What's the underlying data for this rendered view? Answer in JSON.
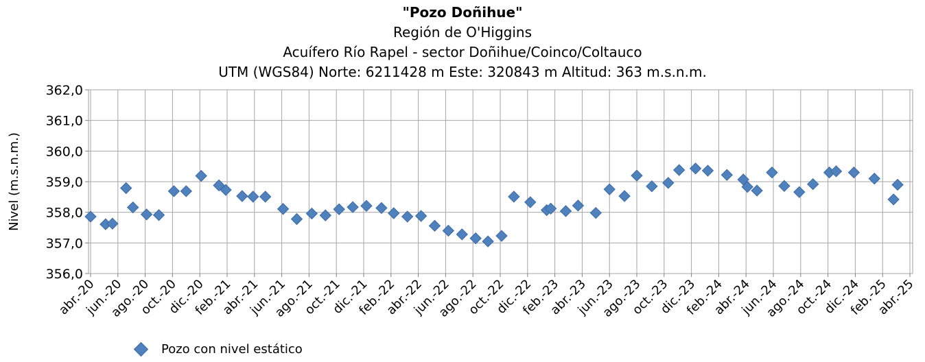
{
  "chart_data": {
    "type": "scatter",
    "title": "\"Pozo Doñihue\"",
    "subtitle_lines": [
      "Región de O'Higgins",
      "Acuífero Río Rapel - sector Doñihue/Coinco/Coltauco",
      "UTM (WGS84) Norte: 6211428 m  Este: 320843 m   Altitud: 363 m.s.n.m."
    ],
    "ylabel": "Nivel (m.s.n.m.)",
    "xlabel": "",
    "ylim": [
      356.0,
      362.0
    ],
    "yticks": [
      "356,0",
      "357,0",
      "358,0",
      "359,0",
      "360,0",
      "361,0",
      "362,0"
    ],
    "xticks": [
      "abr.-20",
      "jun.-20",
      "ago.-20",
      "oct.-20",
      "dic.-20",
      "feb.-21",
      "abr.-21",
      "jun.-21",
      "ago.-21",
      "oct.-21",
      "dic.-21",
      "feb.-22",
      "abr.-22",
      "jun.-22",
      "ago.-22",
      "oct.-22",
      "dic.-22",
      "feb.-23",
      "abr.-23",
      "jun.-23",
      "ago.-23",
      "oct.-23",
      "dic.-23",
      "feb.-24",
      "abr.-24",
      "jun.-24",
      "ago.-24",
      "oct.-24",
      "dic.-24",
      "feb.-25",
      "abr.-25"
    ],
    "x_unit": "months since abr.-20",
    "grid": true,
    "legend_position": "bottom-left",
    "series": [
      {
        "name": "Pozo con nivel estático",
        "color": "#4f81bd",
        "marker": "diamond",
        "points": [
          {
            "x": 0.0,
            "y": 357.86
          },
          {
            "x": 1.1,
            "y": 357.61
          },
          {
            "x": 1.6,
            "y": 357.63
          },
          {
            "x": 2.6,
            "y": 358.79
          },
          {
            "x": 3.1,
            "y": 358.16
          },
          {
            "x": 4.1,
            "y": 357.93
          },
          {
            "x": 5.0,
            "y": 357.91
          },
          {
            "x": 6.1,
            "y": 358.69
          },
          {
            "x": 7.0,
            "y": 358.69
          },
          {
            "x": 8.1,
            "y": 359.19
          },
          {
            "x": 9.4,
            "y": 358.88
          },
          {
            "x": 9.9,
            "y": 358.73
          },
          {
            "x": 11.1,
            "y": 358.53
          },
          {
            "x": 11.9,
            "y": 358.51
          },
          {
            "x": 12.8,
            "y": 358.51
          },
          {
            "x": 14.1,
            "y": 358.11
          },
          {
            "x": 15.1,
            "y": 357.78
          },
          {
            "x": 16.2,
            "y": 357.96
          },
          {
            "x": 17.2,
            "y": 357.9
          },
          {
            "x": 18.2,
            "y": 358.1
          },
          {
            "x": 19.2,
            "y": 358.17
          },
          {
            "x": 20.2,
            "y": 358.21
          },
          {
            "x": 21.3,
            "y": 358.14
          },
          {
            "x": 22.2,
            "y": 357.97
          },
          {
            "x": 23.2,
            "y": 357.86
          },
          {
            "x": 24.2,
            "y": 357.88
          },
          {
            "x": 25.2,
            "y": 357.56
          },
          {
            "x": 26.2,
            "y": 357.4
          },
          {
            "x": 27.2,
            "y": 357.28
          },
          {
            "x": 28.2,
            "y": 357.15
          },
          {
            "x": 29.1,
            "y": 357.05
          },
          {
            "x": 30.1,
            "y": 357.23
          },
          {
            "x": 31.0,
            "y": 358.51
          },
          {
            "x": 32.2,
            "y": 358.33
          },
          {
            "x": 33.4,
            "y": 358.07
          },
          {
            "x": 33.7,
            "y": 358.12
          },
          {
            "x": 34.8,
            "y": 358.04
          },
          {
            "x": 35.7,
            "y": 358.22
          },
          {
            "x": 37.0,
            "y": 357.98
          },
          {
            "x": 38.0,
            "y": 358.75
          },
          {
            "x": 39.1,
            "y": 358.53
          },
          {
            "x": 40.0,
            "y": 359.2
          },
          {
            "x": 41.1,
            "y": 358.85
          },
          {
            "x": 42.3,
            "y": 358.96
          },
          {
            "x": 43.1,
            "y": 359.38
          },
          {
            "x": 44.3,
            "y": 359.43
          },
          {
            "x": 45.2,
            "y": 359.36
          },
          {
            "x": 46.6,
            "y": 359.22
          },
          {
            "x": 47.8,
            "y": 359.07
          },
          {
            "x": 48.1,
            "y": 358.83
          },
          {
            "x": 48.8,
            "y": 358.71
          },
          {
            "x": 49.9,
            "y": 359.3
          },
          {
            "x": 50.8,
            "y": 358.86
          },
          {
            "x": 51.9,
            "y": 358.66
          },
          {
            "x": 52.9,
            "y": 358.92
          },
          {
            "x": 54.1,
            "y": 359.3
          },
          {
            "x": 54.6,
            "y": 359.34
          },
          {
            "x": 55.9,
            "y": 359.3
          },
          {
            "x": 57.4,
            "y": 359.1
          },
          {
            "x": 58.8,
            "y": 358.42
          },
          {
            "x": 59.1,
            "y": 358.9
          }
        ]
      }
    ]
  }
}
